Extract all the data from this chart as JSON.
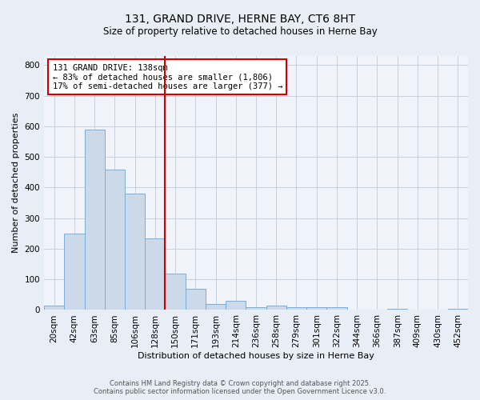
{
  "title_line1": "131, GRAND DRIVE, HERNE BAY, CT6 8HT",
  "title_line2": "Size of property relative to detached houses in Herne Bay",
  "xlabel": "Distribution of detached houses by size in Herne Bay",
  "ylabel": "Number of detached properties",
  "categories": [
    "20sqm",
    "42sqm",
    "63sqm",
    "85sqm",
    "106sqm",
    "128sqm",
    "150sqm",
    "171sqm",
    "193sqm",
    "214sqm",
    "236sqm",
    "258sqm",
    "279sqm",
    "301sqm",
    "322sqm",
    "344sqm",
    "366sqm",
    "387sqm",
    "409sqm",
    "430sqm",
    "452sqm"
  ],
  "values": [
    15,
    250,
    590,
    458,
    380,
    235,
    120,
    68,
    20,
    30,
    10,
    15,
    10,
    8,
    8,
    0,
    0,
    5,
    0,
    0,
    5
  ],
  "bar_color": "#ccd9e8",
  "bar_edge_color": "#7aaed6",
  "vline_x_idx": 6,
  "vline_color": "#cc0000",
  "annotation_text": "131 GRAND DRIVE: 138sqm\n← 83% of detached houses are smaller (1,806)\n17% of semi-detached houses are larger (377) →",
  "annotation_box_color": "#cc0000",
  "annotation_box_facecolor": "white",
  "ylim": [
    0,
    830
  ],
  "yticks": [
    0,
    100,
    200,
    300,
    400,
    500,
    600,
    700,
    800
  ],
  "bg_color": "#e8eef5",
  "plot_bg_color": "#f0f4fa",
  "grid_color": "#c0ccd8",
  "footer_line1": "Contains HM Land Registry data © Crown copyright and database right 2025.",
  "footer_line2": "Contains public sector information licensed under the Open Government Licence v3.0.",
  "title_fontsize": 10,
  "subtitle_fontsize": 8.5,
  "axis_label_fontsize": 8,
  "tick_fontsize": 7.5,
  "annotation_fontsize": 7.5,
  "footer_fontsize": 6
}
